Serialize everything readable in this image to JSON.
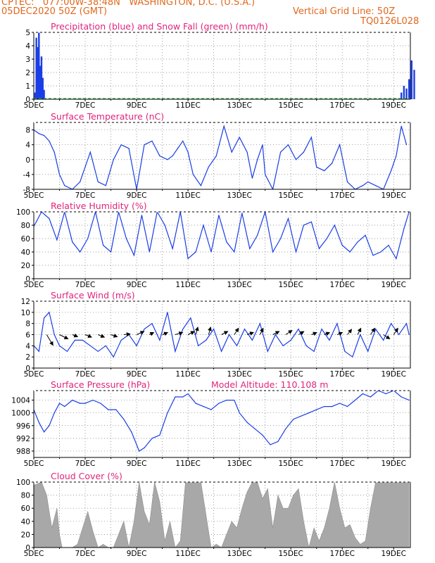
{
  "header": {
    "line1": "CPTEC:   077:00W-38:48N   WASHINGTON, D.C. (U.S.A.)",
    "line2_left": "05DEC2020 50Z (GMT)",
    "line2_right": "Vertical Grid Line: 50Z",
    "line3_right": "TQ0126L028"
  },
  "colors": {
    "header": "#e0681e",
    "title": "#e0247c",
    "series_line": "#1a3ee6",
    "precip": "#1a3ee6",
    "snow": "#2db34a",
    "cloud": "#a8a8a8",
    "wind_arrow": "#000000",
    "grid": "#777777"
  },
  "x_tick_labels": [
    "5DEC",
    "7DEC",
    "9DEC",
    "11DEC",
    "13DEC",
    "15DEC",
    "17DEC",
    "19DEC"
  ],
  "chart_data": [
    {
      "id": "precip",
      "type": "bar",
      "title": "Precipitation (blue) and Snow Fall (green) (mm/h)",
      "ylim": [
        0,
        5
      ],
      "yticks": [
        0,
        1,
        2,
        3,
        4,
        5
      ],
      "x": [
        0.05,
        0.1,
        0.15,
        0.2,
        0.25,
        0.3,
        0.35,
        0.4,
        14.3,
        14.4,
        14.5,
        14.6,
        14.7,
        14.8
      ],
      "series": [
        {
          "name": "Precipitation",
          "values": [
            0.5,
            4.6,
            3.9,
            5.0,
            2.5,
            3.2,
            1.6,
            0.7,
            0.5,
            1.0,
            0.8,
            1.5,
            2.9,
            2.2
          ]
        },
        {
          "name": "Snow Fall",
          "values": [
            0,
            0,
            0,
            0,
            0,
            0,
            0,
            0,
            0,
            0,
            0,
            0,
            0,
            0
          ]
        }
      ]
    },
    {
      "id": "temp",
      "type": "line",
      "title": "Surface Temperature (nC)",
      "ylim": [
        -8,
        10
      ],
      "yticks": [
        -8,
        -4,
        0,
        4,
        8
      ],
      "x": [
        0,
        0.2,
        0.4,
        0.6,
        0.8,
        1.0,
        1.2,
        1.5,
        1.8,
        2.0,
        2.2,
        2.5,
        2.8,
        3.1,
        3.4,
        3.7,
        4.0,
        4.3,
        4.6,
        4.9,
        5.2,
        5.4,
        5.6,
        5.8,
        6.0,
        6.2,
        6.5,
        6.8,
        7.1,
        7.4,
        7.7,
        8.0,
        8.3,
        8.5,
        8.7,
        8.9,
        9.0,
        9.3,
        9.6,
        9.9,
        10.2,
        10.5,
        10.8,
        11.0,
        11.3,
        11.6,
        11.9,
        12.2,
        12.5,
        12.8,
        13.0,
        13.3,
        13.6,
        13.9,
        14.1,
        14.3,
        14.5
      ],
      "series": [
        {
          "name": "Temperature",
          "values": [
            8,
            7,
            6.5,
            5,
            2,
            -4,
            -7,
            -8,
            -6,
            -2,
            2,
            -6,
            -7,
            0,
            4,
            3,
            -8,
            4,
            5,
            1,
            0,
            1,
            3,
            5,
            2,
            -4,
            -7,
            -2,
            1,
            9,
            2,
            6,
            2,
            -5,
            0,
            4,
            -4,
            -8,
            2,
            4,
            0,
            2,
            6,
            -2,
            -3,
            -1,
            4,
            -6,
            -8,
            -7,
            -6,
            -7,
            -8,
            -3,
            1,
            9,
            4
          ]
        }
      ]
    },
    {
      "id": "rh",
      "type": "line",
      "title": "Relative Humidity (%)",
      "ylim": [
        0,
        100
      ],
      "yticks": [
        0,
        20,
        40,
        60,
        80,
        100
      ],
      "x": [
        0,
        0.3,
        0.6,
        0.9,
        1.2,
        1.5,
        1.8,
        2.1,
        2.4,
        2.7,
        3.0,
        3.3,
        3.6,
        3.9,
        4.2,
        4.5,
        4.8,
        5.1,
        5.4,
        5.7,
        6.0,
        6.3,
        6.6,
        6.9,
        7.2,
        7.5,
        7.8,
        8.1,
        8.4,
        8.7,
        9.0,
        9.3,
        9.6,
        9.9,
        10.2,
        10.5,
        10.8,
        11.1,
        11.4,
        11.7,
        12.0,
        12.3,
        12.6,
        12.9,
        13.2,
        13.5,
        13.8,
        14.1,
        14.4,
        14.6
      ],
      "series": [
        {
          "name": "Relative Humidity",
          "values": [
            78,
            100,
            90,
            58,
            100,
            55,
            40,
            60,
            100,
            50,
            40,
            100,
            60,
            35,
            95,
            40,
            100,
            80,
            45,
            100,
            30,
            40,
            80,
            40,
            95,
            55,
            40,
            98,
            45,
            65,
            100,
            40,
            60,
            90,
            40,
            80,
            85,
            45,
            60,
            80,
            50,
            40,
            55,
            65,
            35,
            40,
            50,
            30,
            75,
            100
          ]
        }
      ]
    },
    {
      "id": "wind",
      "type": "line",
      "title": "Surface Wind (m/s)",
      "ylim": [
        0,
        12
      ],
      "yticks": [
        0,
        2,
        4,
        6,
        8,
        10,
        12
      ],
      "x": [
        0,
        0.2,
        0.4,
        0.6,
        0.8,
        1.0,
        1.3,
        1.6,
        1.9,
        2.2,
        2.5,
        2.8,
        3.1,
        3.4,
        3.7,
        4.0,
        4.3,
        4.6,
        4.9,
        5.2,
        5.5,
        5.8,
        6.1,
        6.4,
        6.7,
        7.0,
        7.3,
        7.6,
        7.9,
        8.2,
        8.5,
        8.8,
        9.1,
        9.4,
        9.7,
        10.0,
        10.3,
        10.6,
        10.9,
        11.2,
        11.5,
        11.8,
        12.1,
        12.4,
        12.7,
        13.0,
        13.3,
        13.6,
        13.9,
        14.2,
        14.5,
        14.6
      ],
      "series": [
        {
          "name": "Wind Speed",
          "values": [
            4,
            3,
            9,
            10,
            6,
            4,
            3,
            5,
            5,
            4,
            3,
            4,
            2,
            5,
            6,
            4,
            7,
            8,
            5,
            10,
            3,
            7,
            9,
            4,
            5,
            7,
            3,
            6,
            4,
            7,
            5,
            8,
            3,
            6,
            4,
            5,
            7,
            4,
            3,
            7,
            5,
            8,
            3,
            2,
            6,
            3,
            7,
            5,
            8,
            6,
            8,
            6
          ]
        }
      ],
      "arrows": [
        {
          "x": 0.5,
          "u": 3.0,
          "v": -5.0
        },
        {
          "x": 1.0,
          "u": 4.0,
          "v": -2.0
        },
        {
          "x": 1.5,
          "u": 2.5,
          "v": -1.0
        },
        {
          "x": 2.0,
          "u": 3.0,
          "v": -1.2
        },
        {
          "x": 2.5,
          "u": 3.0,
          "v": -1.2
        },
        {
          "x": 3.0,
          "u": 3.0,
          "v": -1.0
        },
        {
          "x": 3.5,
          "u": 3.0,
          "v": 0.3
        },
        {
          "x": 4.0,
          "u": 3.5,
          "v": 1.5
        },
        {
          "x": 4.5,
          "u": 2.0,
          "v": 1.0
        },
        {
          "x": 5.0,
          "u": 2.5,
          "v": 1.0
        },
        {
          "x": 5.5,
          "u": 3.5,
          "v": 1.0
        },
        {
          "x": 6.0,
          "u": 3.0,
          "v": 1.5
        },
        {
          "x": 6.3,
          "u": 1.0,
          "v": 3.5
        },
        {
          "x": 6.8,
          "u": 1.0,
          "v": 3.5
        },
        {
          "x": 7.3,
          "u": 3.0,
          "v": 1.5
        },
        {
          "x": 7.8,
          "u": 2.0,
          "v": 3.0
        },
        {
          "x": 8.3,
          "u": 3.0,
          "v": 1.0
        },
        {
          "x": 8.8,
          "u": 1.5,
          "v": 3.0
        },
        {
          "x": 9.3,
          "u": 3.0,
          "v": 1.5
        },
        {
          "x": 9.8,
          "u": 3.0,
          "v": 2.0
        },
        {
          "x": 10.3,
          "u": 2.5,
          "v": 1.5
        },
        {
          "x": 10.8,
          "u": 2.5,
          "v": 1.0
        },
        {
          "x": 11.3,
          "u": 2.5,
          "v": 1.0
        },
        {
          "x": 11.8,
          "u": 2.5,
          "v": 1.0
        },
        {
          "x": 12.2,
          "u": 2.0,
          "v": 2.5
        },
        {
          "x": 12.6,
          "u": 1.5,
          "v": 3.0
        },
        {
          "x": 13.1,
          "u": 2.0,
          "v": 3.0
        },
        {
          "x": 13.6,
          "u": 3.0,
          "v": -2.0
        },
        {
          "x": 14.0,
          "u": 2.0,
          "v": 3.0
        }
      ]
    },
    {
      "id": "pres",
      "type": "line",
      "title": "Surface Pressure (hPa)",
      "annotation": "Model Altitude: 110.108  m",
      "ylim": [
        986,
        1007
      ],
      "yticks": [
        988,
        992,
        996,
        1000,
        1004
      ],
      "x": [
        0,
        0.2,
        0.4,
        0.6,
        0.8,
        1.0,
        1.2,
        1.5,
        1.8,
        2.0,
        2.3,
        2.6,
        2.9,
        3.2,
        3.5,
        3.8,
        4.0,
        4.1,
        4.3,
        4.6,
        4.9,
        5.2,
        5.5,
        5.8,
        6.0,
        6.3,
        6.6,
        6.9,
        7.2,
        7.5,
        7.8,
        8.0,
        8.3,
        8.6,
        8.9,
        9.2,
        9.5,
        9.8,
        10.1,
        10.4,
        10.7,
        11.0,
        11.3,
        11.6,
        11.9,
        12.2,
        12.5,
        12.8,
        13.1,
        13.4,
        13.7,
        14.0,
        14.3,
        14.6
      ],
      "series": [
        {
          "name": "Pressure",
          "values": [
            1001,
            997,
            994,
            996,
            1000,
            1003,
            1002,
            1004,
            1003,
            1003,
            1004,
            1003,
            1001,
            1001,
            998,
            994,
            990,
            988,
            989,
            992,
            993,
            1000,
            1005,
            1005,
            1006,
            1003,
            1002,
            1001,
            1003,
            1004,
            1004,
            1000,
            997,
            995,
            993,
            990,
            991,
            995,
            998,
            999,
            1000,
            1001,
            1002,
            1002,
            1003,
            1002,
            1004,
            1006,
            1005,
            1007,
            1006,
            1007,
            1005,
            1004
          ]
        }
      ]
    },
    {
      "id": "cloud",
      "type": "area",
      "title": "Cloud Cover (%)",
      "ylim": [
        0,
        100
      ],
      "yticks": [
        0,
        20,
        40,
        60,
        80,
        100
      ],
      "x": [
        0,
        0.3,
        0.5,
        0.7,
        0.9,
        1.0,
        1.1,
        1.3,
        1.5,
        1.7,
        1.9,
        2.1,
        2.3,
        2.5,
        2.7,
        2.9,
        3.1,
        3.3,
        3.5,
        3.7,
        3.9,
        4.1,
        4.3,
        4.5,
        4.7,
        4.9,
        5.1,
        5.3,
        5.5,
        5.7,
        5.9,
        6.1,
        6.3,
        6.5,
        6.7,
        6.9,
        7.1,
        7.3,
        7.5,
        7.7,
        7.9,
        8.1,
        8.3,
        8.5,
        8.7,
        8.9,
        9.1,
        9.3,
        9.5,
        9.7,
        9.9,
        10.1,
        10.3,
        10.5,
        10.7,
        10.9,
        11.1,
        11.3,
        11.5,
        11.7,
        11.9,
        12.1,
        12.3,
        12.5,
        12.7,
        12.9,
        13.1,
        13.3,
        13.5,
        13.7,
        13.9,
        14.1,
        14.3,
        14.5,
        14.6
      ],
      "series": [
        {
          "name": "Cloud Cover",
          "values": [
            95,
            100,
            80,
            30,
            60,
            20,
            0,
            0,
            0,
            5,
            30,
            55,
            25,
            0,
            5,
            0,
            0,
            20,
            40,
            0,
            40,
            100,
            55,
            35,
            100,
            70,
            10,
            40,
            0,
            10,
            100,
            100,
            100,
            100,
            50,
            0,
            5,
            0,
            20,
            40,
            30,
            60,
            85,
            100,
            100,
            75,
            90,
            30,
            80,
            60,
            60,
            80,
            90,
            40,
            0,
            30,
            10,
            30,
            60,
            100,
            60,
            30,
            35,
            15,
            5,
            10,
            60,
            100,
            100,
            100,
            100,
            100,
            100,
            100,
            100
          ]
        }
      ]
    }
  ]
}
